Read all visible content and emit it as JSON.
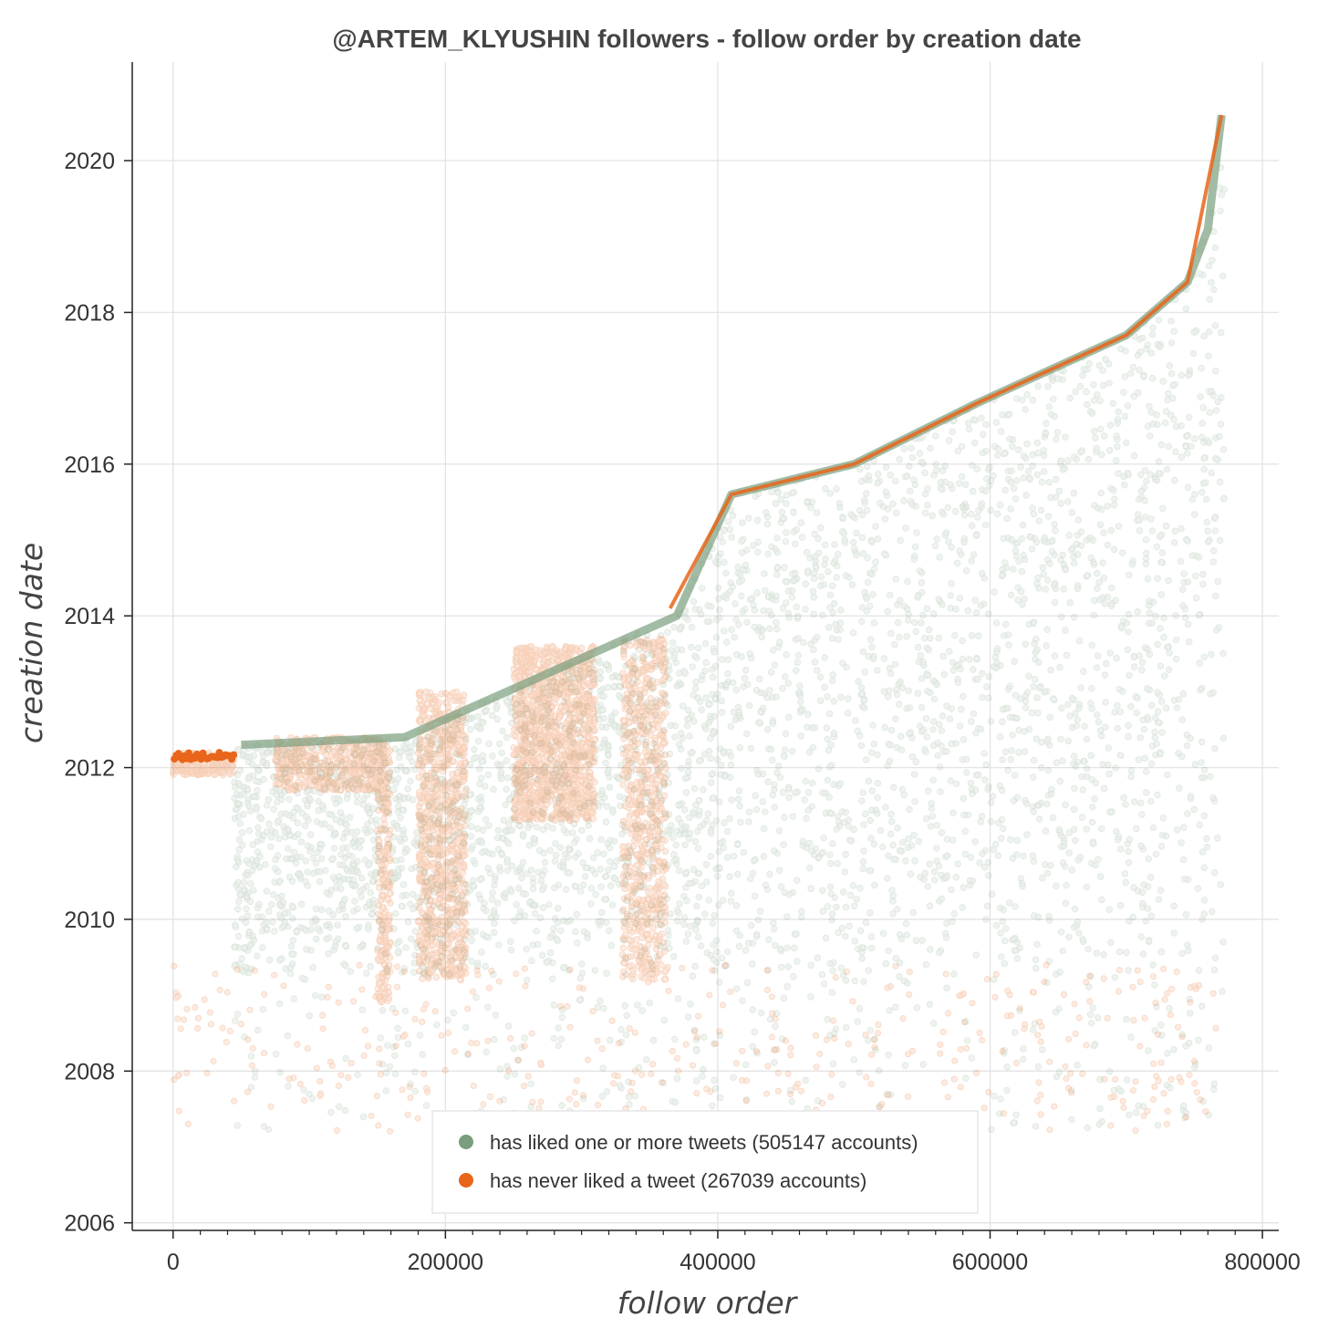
{
  "chart_data": {
    "type": "scatter",
    "title": "@ARTEM_KLYUSHIN followers - follow order by creation date",
    "xlabel": "follow order",
    "ylabel": "creation date",
    "xlim": [
      -30000,
      812000
    ],
    "ylim": [
      2005.9,
      2021.3
    ],
    "xticks": [
      0,
      200000,
      400000,
      600000,
      800000
    ],
    "xtick_labels": [
      "0",
      "200000",
      "400000",
      "600000",
      "800000"
    ],
    "yticks": [
      2006,
      2008,
      2010,
      2012,
      2014,
      2016,
      2018,
      2020
    ],
    "ytick_labels": [
      "2006",
      "2008",
      "2010",
      "2012",
      "2014",
      "2016",
      "2018",
      "2020"
    ],
    "grid": true,
    "legend_position": "bottom-center",
    "series": [
      {
        "name": "has liked one or more tweets (505147 accounts)",
        "color": "#7a9e7e",
        "count": 505147,
        "envelope": [
          [
            50000,
            2012.3
          ],
          [
            170000,
            2012.4
          ],
          [
            370000,
            2014.0
          ],
          [
            410000,
            2015.6
          ],
          [
            500000,
            2016.0
          ],
          [
            590000,
            2016.8
          ],
          [
            700000,
            2017.7
          ],
          [
            745000,
            2018.4
          ],
          [
            760000,
            2019.1
          ],
          [
            770000,
            2020.6
          ]
        ]
      },
      {
        "name": "has never liked a tweet (267039 accounts)",
        "color": "#e8651a",
        "count": 267039,
        "envelope": [
          [
            0,
            2012.2
          ],
          [
            120000,
            2012.5
          ],
          [
            175000,
            2013.1
          ],
          [
            230000,
            2013.5
          ],
          [
            300000,
            2013.8
          ],
          [
            365000,
            2014.1
          ],
          [
            410000,
            2015.6
          ],
          [
            500000,
            2016.0
          ],
          [
            590000,
            2016.8
          ],
          [
            700000,
            2017.7
          ],
          [
            745000,
            2018.4
          ],
          [
            770000,
            2020.6
          ]
        ]
      }
    ]
  }
}
